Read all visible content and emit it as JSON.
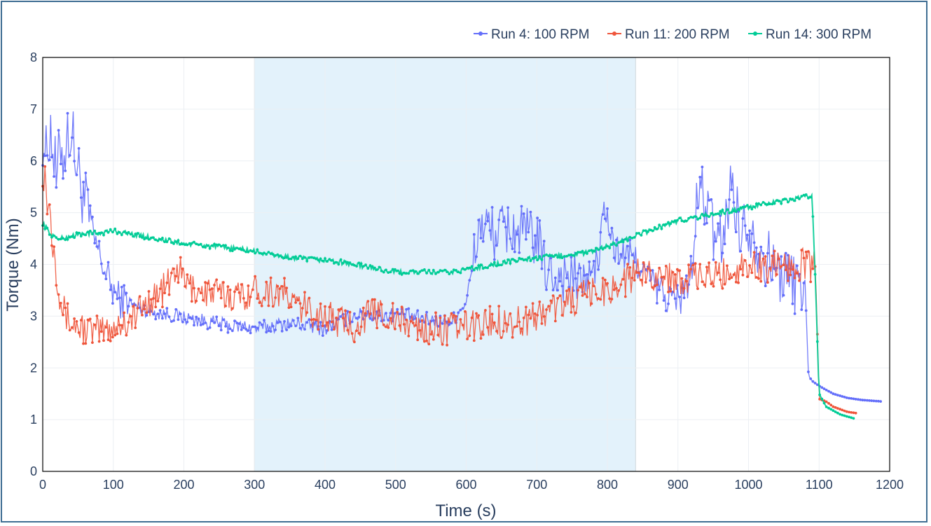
{
  "chart_data": {
    "type": "line",
    "title": "",
    "xlabel": "Time (s)",
    "ylabel": "Torque (Nm)",
    "xlim": [
      0,
      1200
    ],
    "ylim": [
      0,
      8
    ],
    "x_ticks": [
      0,
      100,
      200,
      300,
      400,
      500,
      600,
      700,
      800,
      900,
      1000,
      1100,
      1200
    ],
    "y_ticks": [
      0,
      1,
      2,
      3,
      4,
      5,
      6,
      7,
      8
    ],
    "grid": true,
    "legend_position": "top-right",
    "shaded_region": {
      "x_start": 300,
      "x_end": 840,
      "color": "#e3f2fb"
    },
    "series": [
      {
        "name": "Run 4: 100 RPM",
        "color": "#636efa",
        "x": [
          0,
          5,
          10,
          15,
          20,
          25,
          30,
          35,
          40,
          45,
          50,
          60,
          70,
          80,
          90,
          100,
          110,
          120,
          130,
          140,
          150,
          170,
          190,
          210,
          230,
          250,
          270,
          290,
          300,
          320,
          340,
          360,
          380,
          400,
          420,
          440,
          460,
          480,
          500,
          520,
          540,
          560,
          580,
          600,
          610,
          615,
          620,
          640,
          660,
          680,
          700,
          710,
          720,
          740,
          760,
          780,
          790,
          795,
          800,
          810,
          820,
          840,
          860,
          880,
          900,
          910,
          920,
          925,
          930,
          940,
          950,
          960,
          970,
          975,
          980,
          990,
          1000,
          1010,
          1020,
          1040,
          1060,
          1070,
          1080,
          1085,
          1090,
          1100,
          1120,
          1140,
          1160,
          1190
        ],
        "y": [
          6.6,
          6.0,
          6.7,
          6.2,
          5.5,
          6.4,
          6.1,
          6.5,
          6.6,
          6.2,
          5.8,
          5.2,
          4.6,
          4.2,
          3.8,
          3.5,
          3.3,
          3.3,
          3.2,
          3.15,
          3.1,
          3.05,
          3.0,
          2.95,
          2.9,
          2.85,
          2.8,
          2.8,
          2.75,
          2.8,
          2.85,
          2.85,
          2.8,
          2.75,
          2.9,
          3.0,
          3.05,
          3.0,
          3.05,
          3.0,
          2.95,
          2.9,
          2.9,
          3.3,
          4.0,
          4.5,
          4.8,
          4.6,
          4.7,
          4.6,
          4.5,
          4.0,
          3.8,
          3.8,
          3.7,
          3.8,
          4.3,
          5.2,
          4.8,
          4.3,
          4.2,
          4.1,
          3.7,
          3.4,
          3.3,
          3.5,
          3.9,
          4.8,
          5.5,
          5.2,
          4.6,
          4.4,
          5.0,
          5.6,
          5.3,
          4.6,
          4.8,
          4.5,
          4.2,
          3.9,
          3.7,
          3.6,
          3.7,
          1.85,
          1.75,
          1.65,
          1.5,
          1.42,
          1.38,
          1.35
        ]
      },
      {
        "name": "Run 11: 200 RPM",
        "color": "#ef553b",
        "x": [
          0,
          5,
          10,
          15,
          20,
          25,
          30,
          40,
          50,
          60,
          70,
          80,
          90,
          100,
          110,
          120,
          130,
          140,
          150,
          160,
          170,
          180,
          190,
          200,
          210,
          220,
          240,
          260,
          280,
          300,
          320,
          340,
          360,
          380,
          400,
          420,
          440,
          460,
          480,
          500,
          520,
          540,
          560,
          580,
          600,
          620,
          640,
          660,
          680,
          700,
          720,
          740,
          760,
          780,
          800,
          820,
          840,
          860,
          880,
          900,
          920,
          940,
          960,
          980,
          1000,
          1020,
          1040,
          1060,
          1080,
          1090,
          1095,
          1100,
          1110,
          1120,
          1130,
          1140,
          1155
        ],
        "y": [
          6.0,
          5.5,
          5.0,
          4.5,
          4.0,
          3.5,
          3.1,
          2.85,
          2.8,
          2.75,
          2.7,
          2.7,
          2.75,
          2.8,
          2.85,
          2.9,
          3.0,
          3.15,
          3.3,
          3.4,
          3.5,
          3.65,
          3.95,
          3.7,
          3.55,
          3.5,
          3.45,
          3.4,
          3.4,
          3.5,
          3.5,
          3.45,
          3.2,
          3.1,
          3.0,
          2.9,
          2.8,
          3.0,
          3.1,
          2.9,
          2.85,
          2.75,
          2.75,
          2.75,
          2.8,
          2.85,
          2.9,
          2.9,
          2.9,
          3.0,
          3.15,
          3.25,
          3.35,
          3.45,
          3.5,
          3.65,
          3.8,
          3.85,
          3.75,
          3.75,
          3.7,
          3.75,
          3.8,
          3.9,
          4.0,
          3.95,
          4.0,
          4.0,
          4.0,
          3.95,
          4.0,
          1.4,
          1.35,
          1.25,
          1.2,
          1.15,
          1.12
        ]
      },
      {
        "name": "Run 14: 300 RPM",
        "color": "#00cc96",
        "x": [
          0,
          10,
          20,
          30,
          40,
          60,
          80,
          100,
          120,
          140,
          160,
          180,
          200,
          220,
          240,
          260,
          280,
          300,
          320,
          340,
          360,
          380,
          400,
          420,
          440,
          460,
          480,
          500,
          520,
          540,
          560,
          580,
          600,
          620,
          640,
          660,
          680,
          700,
          720,
          740,
          760,
          780,
          800,
          820,
          840,
          860,
          880,
          900,
          920,
          940,
          960,
          980,
          1000,
          1020,
          1040,
          1060,
          1080,
          1090,
          1095,
          1100,
          1110,
          1130,
          1150
        ],
        "y": [
          4.8,
          4.6,
          4.5,
          4.5,
          4.55,
          4.6,
          4.6,
          4.65,
          4.6,
          4.55,
          4.5,
          4.45,
          4.4,
          4.38,
          4.35,
          4.32,
          4.3,
          4.25,
          4.2,
          4.15,
          4.12,
          4.1,
          4.08,
          4.05,
          4.0,
          3.95,
          3.9,
          3.85,
          3.85,
          3.85,
          3.85,
          3.85,
          3.9,
          3.95,
          4.0,
          4.05,
          4.1,
          4.12,
          4.15,
          4.18,
          4.2,
          4.25,
          4.35,
          4.45,
          4.55,
          4.65,
          4.75,
          4.85,
          4.9,
          4.95,
          5.0,
          5.05,
          5.1,
          5.15,
          5.2,
          5.25,
          5.3,
          5.33,
          3.6,
          1.5,
          1.25,
          1.1,
          1.02
        ]
      }
    ]
  }
}
